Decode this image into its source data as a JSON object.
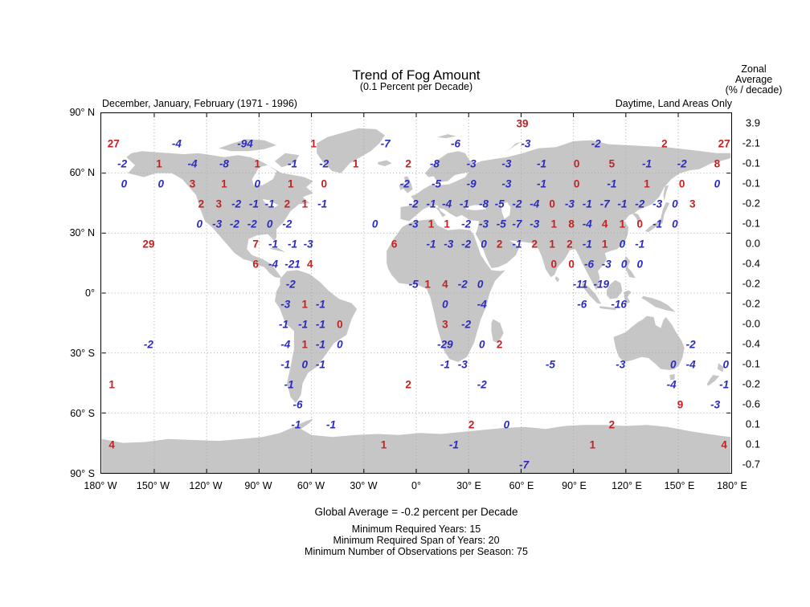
{
  "figure": {
    "title": "Trend of Fog Amount",
    "subtitle": "(0.1 Percent per Decade)",
    "header_left": "December, January, February (1971 - 1996)",
    "header_right": "Daytime, Land Areas Only",
    "footer_global_average": "Global Average = -0.2 percent per Decade",
    "footer_notes": [
      "Minimum Required Years: 15",
      "Minimum Required Span of Years: 20",
      "Minimum Number of Observations per Season: 75"
    ]
  },
  "zonal_header": {
    "line1": "Zonal",
    "line2": "Average",
    "line3": "(% / decade)"
  },
  "axes": {
    "x_tick_lons": [
      -180,
      -150,
      -120,
      -90,
      -60,
      -30,
      0,
      30,
      60,
      90,
      120,
      150,
      180
    ],
    "x_tick_labels": [
      "180° W",
      "150° W",
      "120° W",
      "90° W",
      "60° W",
      "30° W",
      "0°",
      "30° E",
      "60° E",
      "90° E",
      "120° E",
      "150° E",
      "180° E"
    ],
    "y_tick_lats": [
      90,
      60,
      30,
      0,
      -30,
      -60,
      -90
    ],
    "y_tick_labels": [
      "90° N",
      "60° N",
      "30° N",
      "0°",
      "30° S",
      "60° S",
      "90° S"
    ]
  },
  "colors": {
    "red_value": "#c32222",
    "blue_value": "#2b2bbe",
    "land": "#c6c6c6",
    "grid": "#a8a8a8",
    "axis": "#000000"
  },
  "chart_data": {
    "type": "heatmap",
    "title": "Trend of Fog Amount",
    "units": "0.1 Percent per Decade",
    "season": "December, January, February (1971 - 1996)",
    "scope": "Daytime, Land Areas Only",
    "projection": "equirectangular",
    "lon_range": [
      -180,
      180
    ],
    "lat_range": [
      -90,
      90
    ],
    "grid": true,
    "global_average_percent_per_decade": -0.2,
    "zonal_average_lats": [
      85,
      75,
      65,
      55,
      45,
      35,
      25,
      15,
      5,
      -5,
      -15,
      -25,
      -35,
      -45,
      -55,
      -65,
      -75,
      -85
    ],
    "zonal_averages": [
      "3.9",
      "-2.1",
      "-0.1",
      "-0.1",
      "-0.2",
      "-0.1",
      "0.0",
      "-0.4",
      "-0.2",
      "-0.2",
      "-0.0",
      "-0.4",
      "-0.1",
      "-0.2",
      "-0.6",
      "0.1",
      "0.1",
      "-0.7"
    ],
    "point_format": [
      "lon",
      "lat",
      "value",
      "color_key(r=red,b=blue)"
    ],
    "points": [
      [
        60,
        85,
        "39",
        "r"
      ],
      [
        -173,
        75,
        "27",
        "r"
      ],
      [
        -137,
        75,
        "-4",
        "b"
      ],
      [
        -98,
        75,
        "-94",
        "b"
      ],
      [
        -59,
        75,
        "1",
        "r"
      ],
      [
        -18,
        75,
        "-7",
        "b"
      ],
      [
        22,
        75,
        "-6",
        "b"
      ],
      [
        62,
        75,
        "-3",
        "b"
      ],
      [
        102,
        75,
        "-2",
        "b"
      ],
      [
        141,
        75,
        "2",
        "r"
      ],
      [
        175,
        75,
        "27",
        "r"
      ],
      [
        -168,
        65,
        "-2",
        "b"
      ],
      [
        -147,
        65,
        "1",
        "r"
      ],
      [
        -128,
        65,
        "-4",
        "b"
      ],
      [
        -110,
        65,
        "-8",
        "b"
      ],
      [
        -91,
        65,
        "1",
        "r"
      ],
      [
        -71,
        65,
        "-1",
        "b"
      ],
      [
        -53,
        65,
        "-2",
        "b"
      ],
      [
        -35,
        65,
        "1",
        "r"
      ],
      [
        -5,
        65,
        "2",
        "r"
      ],
      [
        10,
        65,
        "-8",
        "b"
      ],
      [
        31,
        65,
        "-3",
        "b"
      ],
      [
        51,
        65,
        "-3",
        "b"
      ],
      [
        71,
        65,
        "-1",
        "b"
      ],
      [
        91,
        65,
        "0",
        "r"
      ],
      [
        111,
        65,
        "5",
        "r"
      ],
      [
        131,
        65,
        "-1",
        "b"
      ],
      [
        151,
        65,
        "-2",
        "b"
      ],
      [
        171,
        65,
        "8",
        "r"
      ],
      [
        -167,
        55,
        "0",
        "b"
      ],
      [
        -146,
        55,
        "0",
        "b"
      ],
      [
        -128,
        55,
        "3",
        "r"
      ],
      [
        -110,
        55,
        "1",
        "r"
      ],
      [
        -91,
        55,
        "0",
        "b"
      ],
      [
        -72,
        55,
        "1",
        "r"
      ],
      [
        -53,
        55,
        "0",
        "r"
      ],
      [
        -7,
        55,
        "-2",
        "b"
      ],
      [
        11,
        55,
        "-5",
        "b"
      ],
      [
        31,
        55,
        "-9",
        "b"
      ],
      [
        51,
        55,
        "-3",
        "b"
      ],
      [
        71,
        55,
        "-1",
        "b"
      ],
      [
        91,
        55,
        "0",
        "r"
      ],
      [
        111,
        55,
        "-1",
        "b"
      ],
      [
        131,
        55,
        "1",
        "r"
      ],
      [
        151,
        55,
        "0",
        "r"
      ],
      [
        171,
        55,
        "0",
        "b"
      ],
      [
        -123,
        45,
        "2",
        "r"
      ],
      [
        -113,
        45,
        "3",
        "r"
      ],
      [
        -103,
        45,
        "-2",
        "b"
      ],
      [
        -93,
        45,
        "-1",
        "b"
      ],
      [
        -84,
        45,
        "-1",
        "b"
      ],
      [
        -74,
        45,
        "2",
        "r"
      ],
      [
        -64,
        45,
        "1",
        "r"
      ],
      [
        -54,
        45,
        "-1",
        "b"
      ],
      [
        -2,
        45,
        "-2",
        "b"
      ],
      [
        8,
        45,
        "-1",
        "b"
      ],
      [
        17,
        45,
        "-4",
        "b"
      ],
      [
        27,
        45,
        "-1",
        "b"
      ],
      [
        38,
        45,
        "-8",
        "b"
      ],
      [
        47,
        45,
        "-5",
        "b"
      ],
      [
        57,
        45,
        "-2",
        "b"
      ],
      [
        67,
        45,
        "-4",
        "b"
      ],
      [
        77,
        45,
        "0",
        "r"
      ],
      [
        87,
        45,
        "-3",
        "b"
      ],
      [
        97,
        45,
        "-1",
        "b"
      ],
      [
        107,
        45,
        "-7",
        "b"
      ],
      [
        117,
        45,
        "-1",
        "b"
      ],
      [
        127,
        45,
        "-2",
        "b"
      ],
      [
        137,
        45,
        "-3",
        "b"
      ],
      [
        147,
        45,
        "0",
        "b"
      ],
      [
        157,
        45,
        "3",
        "r"
      ],
      [
        -124,
        35,
        "0",
        "b"
      ],
      [
        -114,
        35,
        "-3",
        "b"
      ],
      [
        -104,
        35,
        "-2",
        "b"
      ],
      [
        -94,
        35,
        "-2",
        "b"
      ],
      [
        -84,
        35,
        "0",
        "b"
      ],
      [
        -74,
        35,
        "-2",
        "b"
      ],
      [
        -24,
        35,
        "0",
        "b"
      ],
      [
        -2,
        35,
        "-3",
        "b"
      ],
      [
        8,
        35,
        "1",
        "r"
      ],
      [
        17,
        35,
        "1",
        "r"
      ],
      [
        28,
        35,
        "-2",
        "b"
      ],
      [
        38,
        35,
        "-3",
        "b"
      ],
      [
        48,
        35,
        "-5",
        "b"
      ],
      [
        57,
        35,
        "-7",
        "b"
      ],
      [
        67,
        35,
        "-3",
        "b"
      ],
      [
        78,
        35,
        "1",
        "r"
      ],
      [
        88,
        35,
        "8",
        "r"
      ],
      [
        97,
        35,
        "-4",
        "b"
      ],
      [
        107,
        35,
        "4",
        "r"
      ],
      [
        117,
        35,
        "1",
        "r"
      ],
      [
        127,
        35,
        "0",
        "r"
      ],
      [
        137,
        35,
        "-1",
        "b"
      ],
      [
        147,
        35,
        "0",
        "b"
      ],
      [
        -153,
        25,
        "29",
        "r"
      ],
      [
        -92,
        25,
        "7",
        "r"
      ],
      [
        -82,
        25,
        "-1",
        "b"
      ],
      [
        -71,
        25,
        "-1",
        "b"
      ],
      [
        -62,
        25,
        "-3",
        "b"
      ],
      [
        -13,
        25,
        "6",
        "r"
      ],
      [
        8,
        25,
        "-1",
        "b"
      ],
      [
        18,
        25,
        "-3",
        "b"
      ],
      [
        28,
        25,
        "-2",
        "b"
      ],
      [
        38,
        25,
        "0",
        "b"
      ],
      [
        47,
        25,
        "2",
        "r"
      ],
      [
        57,
        25,
        "-1",
        "b"
      ],
      [
        67,
        25,
        "2",
        "r"
      ],
      [
        77,
        25,
        "1",
        "r"
      ],
      [
        87,
        25,
        "2",
        "r"
      ],
      [
        97,
        25,
        "-1",
        "b"
      ],
      [
        107,
        25,
        "1",
        "r"
      ],
      [
        117,
        25,
        "0",
        "b"
      ],
      [
        127,
        25,
        "-1",
        "b"
      ],
      [
        -92,
        15,
        "6",
        "r"
      ],
      [
        -82,
        15,
        "-4",
        "b"
      ],
      [
        -71,
        15,
        "-21",
        "b"
      ],
      [
        -61,
        15,
        "4",
        "r"
      ],
      [
        78,
        15,
        "0",
        "r"
      ],
      [
        88,
        15,
        "0",
        "r"
      ],
      [
        98,
        15,
        "-6",
        "b"
      ],
      [
        108,
        15,
        "-3",
        "b"
      ],
      [
        118,
        15,
        "0",
        "b"
      ],
      [
        127,
        15,
        "0",
        "b"
      ],
      [
        -72,
        5,
        "-2",
        "b"
      ],
      [
        -2,
        5,
        "-5",
        "b"
      ],
      [
        6,
        5,
        "1",
        "r"
      ],
      [
        16,
        5,
        "4",
        "r"
      ],
      [
        26,
        5,
        "-2",
        "b"
      ],
      [
        36,
        5,
        "0",
        "b"
      ],
      [
        93,
        5,
        "-11",
        "b"
      ],
      [
        105,
        5,
        "-19",
        "b"
      ],
      [
        -75,
        -5,
        "-3",
        "b"
      ],
      [
        -64,
        -5,
        "1",
        "r"
      ],
      [
        -55,
        -5,
        "-1",
        "b"
      ],
      [
        16,
        -5,
        "0",
        "b"
      ],
      [
        37,
        -5,
        "-4",
        "b"
      ],
      [
        94,
        -5,
        "-6",
        "b"
      ],
      [
        115,
        -5,
        "-16",
        "b"
      ],
      [
        -76,
        -15,
        "-1",
        "b"
      ],
      [
        -65,
        -15,
        "-1",
        "b"
      ],
      [
        -55,
        -15,
        "-1",
        "b"
      ],
      [
        -44,
        -15,
        "0",
        "r"
      ],
      [
        16,
        -15,
        "3",
        "r"
      ],
      [
        28,
        -15,
        "-2",
        "b"
      ],
      [
        -153,
        -25,
        "-2",
        "b"
      ],
      [
        -75,
        -25,
        "-4",
        "b"
      ],
      [
        -64,
        -25,
        "1",
        "r"
      ],
      [
        -55,
        -25,
        "-1",
        "b"
      ],
      [
        -44,
        -25,
        "0",
        "b"
      ],
      [
        16,
        -25,
        "-29",
        "b"
      ],
      [
        37,
        -25,
        "0",
        "b"
      ],
      [
        47,
        -25,
        "2",
        "r"
      ],
      [
        156,
        -25,
        "-2",
        "b"
      ],
      [
        -75,
        -35,
        "-1",
        "b"
      ],
      [
        -64,
        -35,
        "0",
        "b"
      ],
      [
        -55,
        -35,
        "-1",
        "b"
      ],
      [
        16,
        -35,
        "-1",
        "b"
      ],
      [
        26,
        -35,
        "-3",
        "b"
      ],
      [
        76,
        -35,
        "-5",
        "b"
      ],
      [
        116,
        -35,
        "-3",
        "b"
      ],
      [
        146,
        -35,
        "0",
        "b"
      ],
      [
        156,
        -35,
        "-4",
        "b"
      ],
      [
        176,
        -35,
        "0",
        "b"
      ],
      [
        -174,
        -45,
        "1",
        "r"
      ],
      [
        -73,
        -45,
        "-1",
        "b"
      ],
      [
        -5,
        -45,
        "2",
        "r"
      ],
      [
        37,
        -45,
        "-2",
        "b"
      ],
      [
        145,
        -45,
        "-4",
        "b"
      ],
      [
        175,
        -45,
        "-1",
        "b"
      ],
      [
        -68,
        -55,
        "-6",
        "b"
      ],
      [
        150,
        -55,
        "9",
        "r"
      ],
      [
        170,
        -55,
        "-3",
        "b"
      ],
      [
        -69,
        -65,
        "-1",
        "b"
      ],
      [
        -49,
        -65,
        "-1",
        "b"
      ],
      [
        31,
        -65,
        "2",
        "r"
      ],
      [
        51,
        -65,
        "0",
        "b"
      ],
      [
        111,
        -65,
        "2",
        "r"
      ],
      [
        -174,
        -75,
        "4",
        "r"
      ],
      [
        -19,
        -75,
        "1",
        "r"
      ],
      [
        21,
        -75,
        "-1",
        "b"
      ],
      [
        100,
        -75,
        "1",
        "r"
      ],
      [
        175,
        -75,
        "4",
        "r"
      ],
      [
        61,
        -85,
        "-7",
        "b"
      ]
    ]
  }
}
